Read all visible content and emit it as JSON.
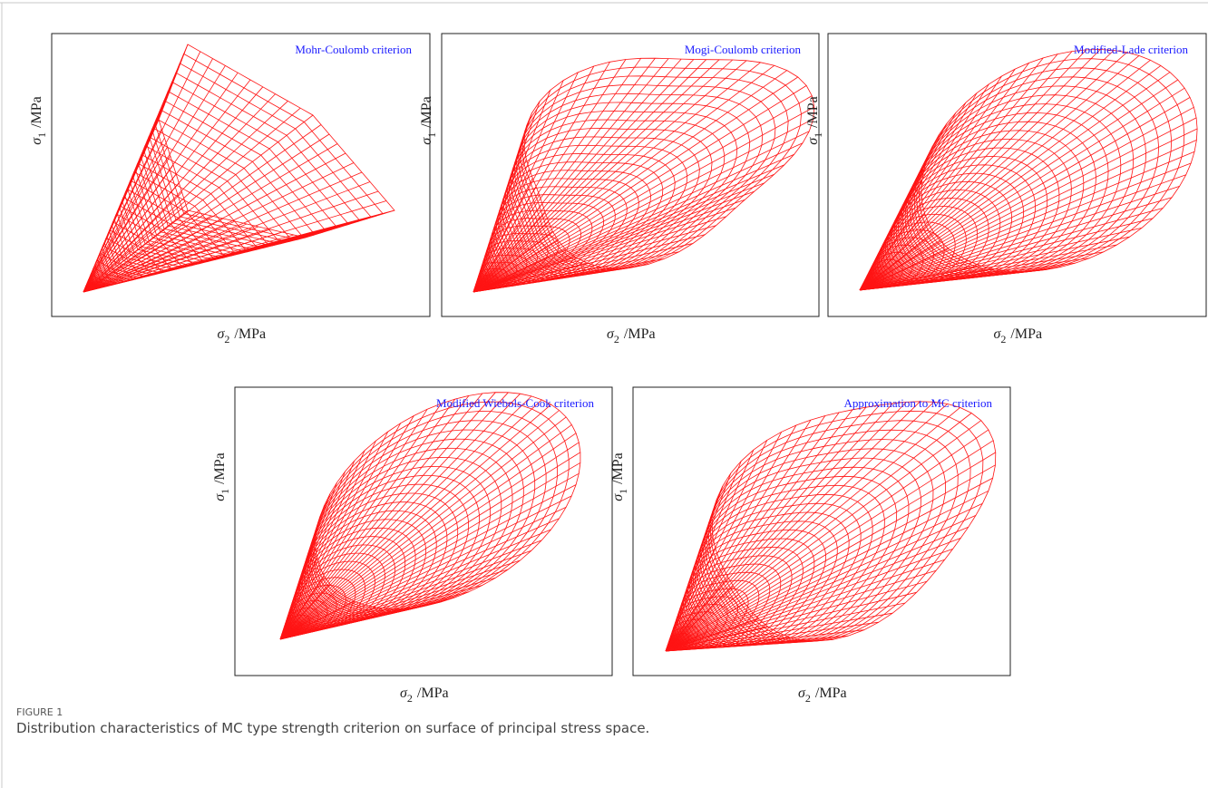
{
  "figure": {
    "panels": [
      {
        "title": "Mohr-Coulomb criterion",
        "y_label": {
          "symbol": "σ",
          "subscript": "1",
          "unit": "/MPa"
        },
        "x_label": {
          "symbol": "σ",
          "subscript": "2",
          "unit": "/MPa"
        }
      },
      {
        "title": "Mogi-Coulomb criterion",
        "y_label": {
          "symbol": "σ",
          "subscript": "1",
          "unit": "/MPa"
        },
        "x_label": {
          "symbol": "σ",
          "subscript": "2",
          "unit": "/MPa"
        }
      },
      {
        "title": "Modified-Lade criterion",
        "y_label": {
          "symbol": "σ",
          "subscript": "1",
          "unit": "/MPa"
        },
        "x_label": {
          "symbol": "σ",
          "subscript": "2",
          "unit": "/MPa"
        }
      },
      {
        "title": "Modified Wiebols-Cook criterion",
        "y_label": {
          "symbol": "σ",
          "subscript": "1",
          "unit": "/MPa"
        },
        "x_label": {
          "symbol": "σ",
          "subscript": "2",
          "unit": "/MPa"
        }
      },
      {
        "title": "Approximation to MC criterion",
        "y_label": {
          "symbol": "σ",
          "subscript": "1",
          "unit": "/MPa"
        },
        "x_label": {
          "symbol": "σ",
          "subscript": "2",
          "unit": "/MPa"
        }
      }
    ],
    "label": "FIGURE 1",
    "caption": "Distribution characteristics of MC type strength criterion on surface of principal stress space."
  }
}
